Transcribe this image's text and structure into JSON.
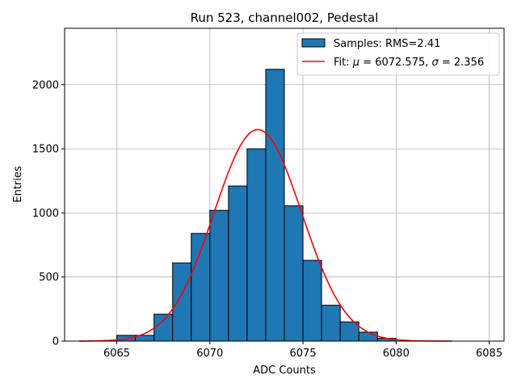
{
  "chart_data": {
    "type": "bar",
    "title": "Run 523, channel002, Pedestal",
    "xlabel": "ADC Counts",
    "ylabel": "Entries",
    "xlim": [
      6062.2,
      6085.8
    ],
    "ylim": [
      0,
      2440
    ],
    "xticks": [
      6065,
      6070,
      6075,
      6080,
      6085
    ],
    "yticks": [
      0,
      500,
      1000,
      1500,
      2000
    ],
    "grid": true,
    "legend_position": "top-right",
    "histogram": {
      "name": "Samples: RMS=2.41",
      "bin_edges": [
        6065,
        6066,
        6067,
        6068,
        6069,
        6070,
        6071,
        6072,
        6073,
        6074,
        6075,
        6076,
        6077,
        6078,
        6079,
        6080
      ],
      "counts": [
        45,
        45,
        210,
        610,
        840,
        1020,
        1210,
        1500,
        2120,
        1055,
        630,
        280,
        150,
        70,
        22
      ],
      "color": "#1f77b4"
    },
    "fit": {
      "name_prefix": "Fit: ",
      "mu_symbol": "μ",
      "mu_text": " = 6072.575, ",
      "sigma_symbol": "σ",
      "sigma_text": " = 2.356",
      "mu": 6072.575,
      "sigma": 2.356,
      "amplitude": 1650,
      "x_range": [
        6063,
        6083
      ],
      "color": "#ff0000"
    }
  }
}
